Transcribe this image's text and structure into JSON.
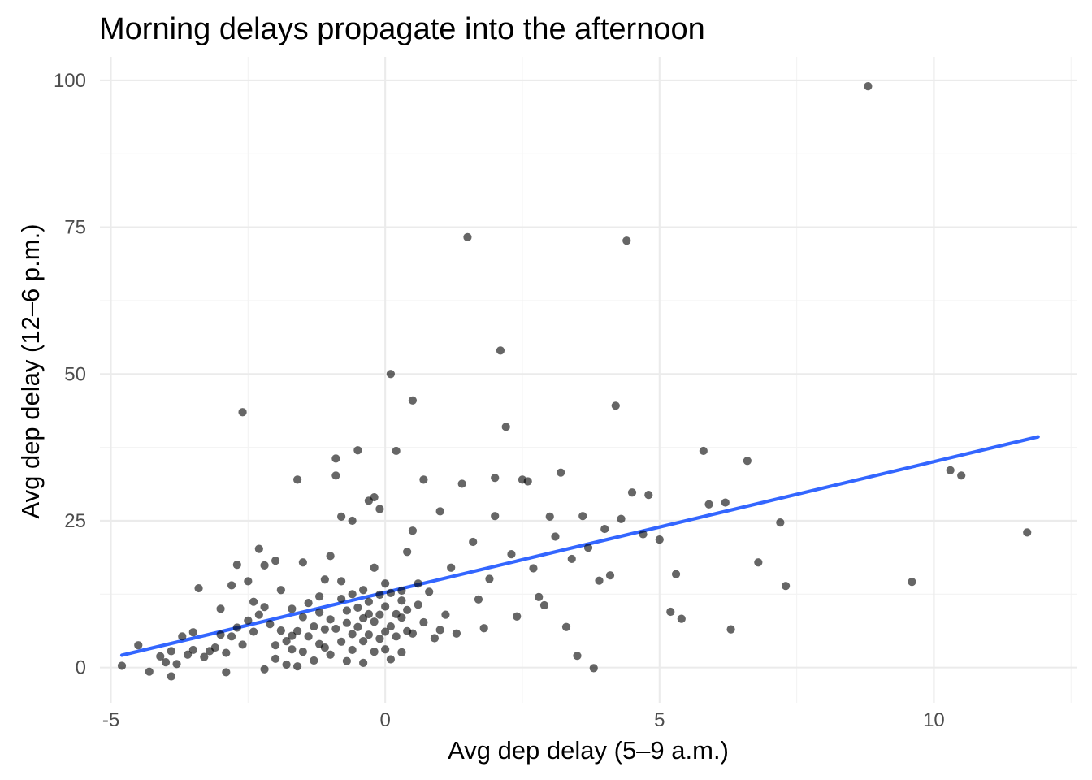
{
  "chart_data": {
    "type": "scatter",
    "title": "Morning delays propagate into the afternoon",
    "xlabel": "Avg dep delay (5–9 a.m.)",
    "ylabel": "Avg dep delay (12–6 p.m.)",
    "xlim": [
      -5.2,
      12.6
    ],
    "ylim": [
      -6,
      104
    ],
    "x_ticks": [
      -5,
      0,
      5,
      10
    ],
    "x_tick_labels": [
      "-5",
      "0",
      "5",
      "10"
    ],
    "y_ticks": [
      0,
      25,
      50,
      75,
      100
    ],
    "y_tick_labels": [
      "0",
      "25",
      "50",
      "75",
      "100"
    ],
    "grid": true,
    "legend": "none",
    "point_color": "#000000",
    "point_opacity": 0.6,
    "trend_line": {
      "color": "#3366ff",
      "x": [
        -4.8,
        11.9
      ],
      "y": [
        2.1,
        39.3
      ]
    },
    "points": [
      [
        -4.8,
        0.3
      ],
      [
        -4.5,
        3.8
      ],
      [
        -4.3,
        -0.7
      ],
      [
        -4.1,
        1.9
      ],
      [
        -4.0,
        0.9
      ],
      [
        -3.9,
        -1.5
      ],
      [
        -3.9,
        2.8
      ],
      [
        -3.8,
        0.6
      ],
      [
        -3.7,
        5.3
      ],
      [
        -3.6,
        2.2
      ],
      [
        -3.5,
        6.0
      ],
      [
        -3.5,
        3.0
      ],
      [
        -3.4,
        13.5
      ],
      [
        -3.3,
        1.8
      ],
      [
        -3.2,
        2.8
      ],
      [
        -3.1,
        3.4
      ],
      [
        -3.0,
        5.6
      ],
      [
        -3.0,
        10.0
      ],
      [
        -2.9,
        2.5
      ],
      [
        -2.9,
        -0.8
      ],
      [
        -2.8,
        5.3
      ],
      [
        -2.8,
        14.0
      ],
      [
        -2.7,
        17.5
      ],
      [
        -2.7,
        6.8
      ],
      [
        -2.6,
        43.5
      ],
      [
        -2.6,
        3.9
      ],
      [
        -2.5,
        14.7
      ],
      [
        -2.5,
        8.0
      ],
      [
        -2.4,
        11.2
      ],
      [
        -2.4,
        6.1
      ],
      [
        -2.3,
        9.0
      ],
      [
        -2.3,
        20.2
      ],
      [
        -2.2,
        -0.3
      ],
      [
        -2.2,
        17.4
      ],
      [
        -2.2,
        10.3
      ],
      [
        -2.1,
        7.4
      ],
      [
        -2.0,
        3.8
      ],
      [
        -2.0,
        1.5
      ],
      [
        -2.0,
        18.2
      ],
      [
        -1.9,
        6.3
      ],
      [
        -1.9,
        13.2
      ],
      [
        -1.8,
        4.5
      ],
      [
        -1.8,
        0.5
      ],
      [
        -1.7,
        3.1
      ],
      [
        -1.7,
        5.4
      ],
      [
        -1.7,
        10.0
      ],
      [
        -1.6,
        6.2
      ],
      [
        -1.6,
        0.2
      ],
      [
        -1.6,
        32.0
      ],
      [
        -1.5,
        8.6
      ],
      [
        -1.5,
        17.9
      ],
      [
        -1.5,
        2.7
      ],
      [
        -1.4,
        11.0
      ],
      [
        -1.4,
        5.3
      ],
      [
        -1.3,
        7.0
      ],
      [
        -1.3,
        1.2
      ],
      [
        -1.2,
        12.1
      ],
      [
        -1.2,
        4.0
      ],
      [
        -1.2,
        9.4
      ],
      [
        -1.1,
        6.5
      ],
      [
        -1.1,
        15.0
      ],
      [
        -1.1,
        3.4
      ],
      [
        -1.0,
        8.2
      ],
      [
        -1.0,
        19.0
      ],
      [
        -1.0,
        2.2
      ],
      [
        -0.9,
        6.6
      ],
      [
        -0.9,
        35.6
      ],
      [
        -0.9,
        32.7
      ],
      [
        -0.8,
        25.7
      ],
      [
        -0.8,
        11.7
      ],
      [
        -0.8,
        4.4
      ],
      [
        -0.8,
        14.7
      ],
      [
        -0.7,
        9.7
      ],
      [
        -0.7,
        1.1
      ],
      [
        -0.7,
        7.6
      ],
      [
        -0.6,
        12.5
      ],
      [
        -0.6,
        5.7
      ],
      [
        -0.6,
        3.0
      ],
      [
        -0.6,
        25.0
      ],
      [
        -0.5,
        10.2
      ],
      [
        -0.5,
        37.0
      ],
      [
        -0.5,
        6.9
      ],
      [
        -0.4,
        8.4
      ],
      [
        -0.4,
        13.2
      ],
      [
        -0.4,
        0.8
      ],
      [
        -0.4,
        4.5
      ],
      [
        -0.3,
        11.2
      ],
      [
        -0.3,
        28.4
      ],
      [
        -0.3,
        9.1
      ],
      [
        -0.3,
        5.6
      ],
      [
        -0.2,
        7.8
      ],
      [
        -0.2,
        17.0
      ],
      [
        -0.2,
        2.7
      ],
      [
        -0.2,
        29.0
      ],
      [
        -0.1,
        12.4
      ],
      [
        -0.1,
        4.9
      ],
      [
        -0.1,
        9.0
      ],
      [
        -0.1,
        27.0
      ],
      [
        0.0,
        6.1
      ],
      [
        0.0,
        14.3
      ],
      [
        0.0,
        3.1
      ],
      [
        0.0,
        10.4
      ],
      [
        0.1,
        7.0
      ],
      [
        0.1,
        50.0
      ],
      [
        0.1,
        12.7
      ],
      [
        0.1,
        1.4
      ],
      [
        0.2,
        9.1
      ],
      [
        0.2,
        5.3
      ],
      [
        0.2,
        36.9
      ],
      [
        0.3,
        13.1
      ],
      [
        0.3,
        8.5
      ],
      [
        0.3,
        2.6
      ],
      [
        0.3,
        11.4
      ],
      [
        0.4,
        6.2
      ],
      [
        0.4,
        19.7
      ],
      [
        0.4,
        9.8
      ],
      [
        0.5,
        45.5
      ],
      [
        0.5,
        23.3
      ],
      [
        0.5,
        5.8
      ],
      [
        0.6,
        14.3
      ],
      [
        0.6,
        10.7
      ],
      [
        0.7,
        32.0
      ],
      [
        0.7,
        7.7
      ],
      [
        0.8,
        12.9
      ],
      [
        0.9,
        5.0
      ],
      [
        1.0,
        26.6
      ],
      [
        1.0,
        6.4
      ],
      [
        1.1,
        9.0
      ],
      [
        1.2,
        17.0
      ],
      [
        1.3,
        5.8
      ],
      [
        1.4,
        31.3
      ],
      [
        1.5,
        73.3
      ],
      [
        1.6,
        21.4
      ],
      [
        1.7,
        11.6
      ],
      [
        1.8,
        6.7
      ],
      [
        1.9,
        15.1
      ],
      [
        2.0,
        32.3
      ],
      [
        2.0,
        25.8
      ],
      [
        2.1,
        54.0
      ],
      [
        2.2,
        41.0
      ],
      [
        2.3,
        19.3
      ],
      [
        2.4,
        8.7
      ],
      [
        2.5,
        32.0
      ],
      [
        2.6,
        31.7
      ],
      [
        2.7,
        16.9
      ],
      [
        2.8,
        12.0
      ],
      [
        2.9,
        10.6
      ],
      [
        3.0,
        25.7
      ],
      [
        3.1,
        22.3
      ],
      [
        3.2,
        33.2
      ],
      [
        3.3,
        6.9
      ],
      [
        3.4,
        18.5
      ],
      [
        3.5,
        2.0
      ],
      [
        3.6,
        25.8
      ],
      [
        3.7,
        20.4
      ],
      [
        3.8,
        -0.1
      ],
      [
        3.9,
        14.8
      ],
      [
        4.0,
        23.6
      ],
      [
        4.1,
        15.7
      ],
      [
        4.2,
        44.6
      ],
      [
        4.3,
        25.3
      ],
      [
        4.4,
        72.7
      ],
      [
        4.5,
        29.8
      ],
      [
        4.7,
        22.7
      ],
      [
        4.8,
        29.4
      ],
      [
        5.0,
        21.8
      ],
      [
        5.2,
        9.5
      ],
      [
        5.3,
        15.9
      ],
      [
        5.4,
        8.3
      ],
      [
        5.8,
        36.9
      ],
      [
        5.9,
        27.8
      ],
      [
        6.2,
        28.1
      ],
      [
        6.3,
        6.5
      ],
      [
        6.6,
        35.2
      ],
      [
        6.8,
        17.9
      ],
      [
        7.2,
        24.7
      ],
      [
        7.3,
        13.9
      ],
      [
        8.8,
        99.0
      ],
      [
        9.6,
        14.6
      ],
      [
        10.3,
        33.6
      ],
      [
        10.5,
        32.7
      ],
      [
        11.7,
        23.0
      ]
    ]
  }
}
